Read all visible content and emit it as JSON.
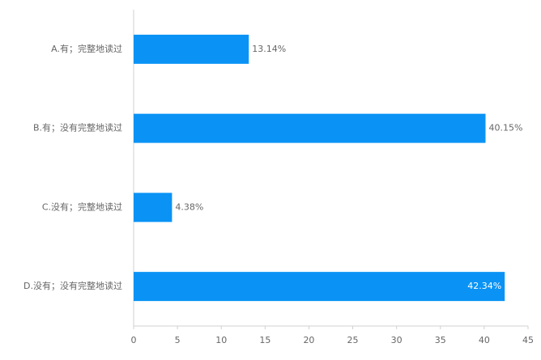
{
  "chart_data": {
    "type": "bar",
    "orientation": "horizontal",
    "categories": [
      "A.有；完整地读过",
      "B.有；没有完整地读过",
      "C.没有；完整地读过",
      "D.没有；没有完整地读过"
    ],
    "values": [
      13.14,
      40.15,
      4.38,
      42.34
    ],
    "value_labels": [
      "13.14%",
      "40.15%",
      "4.38%",
      "42.34%"
    ],
    "color": "#0a93f5",
    "xlim": [
      0,
      45
    ],
    "xticks": [
      0,
      5,
      10,
      15,
      20,
      25,
      30,
      35,
      40,
      45
    ],
    "grid": false
  }
}
